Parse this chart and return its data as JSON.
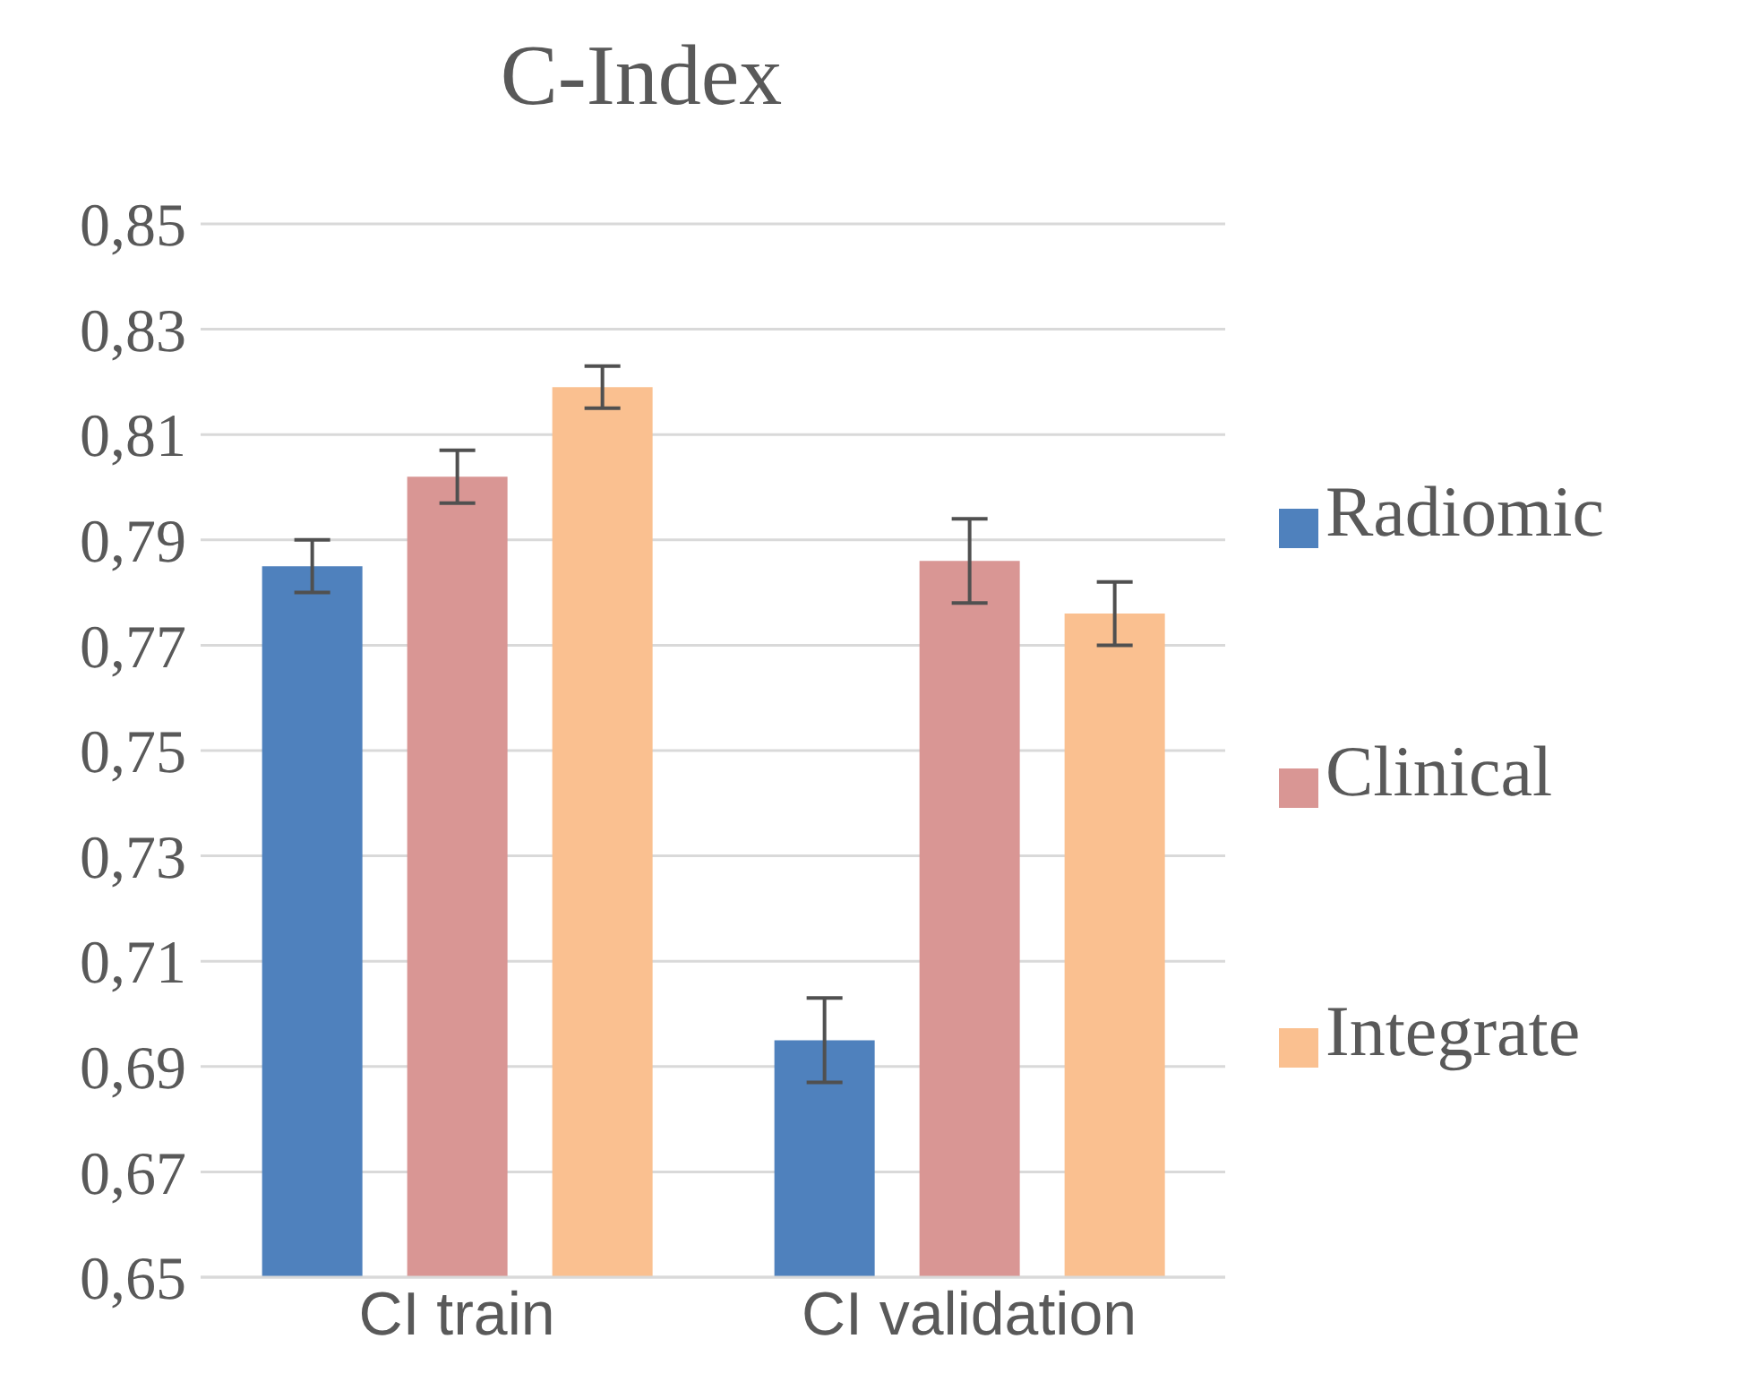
{
  "chart_data": {
    "type": "bar",
    "title": "C-Index",
    "categories": [
      "CI train",
      "CI validation"
    ],
    "series": [
      {
        "name": "Radiomic",
        "color": "#4f81bd",
        "values": [
          0.785,
          0.695
        ],
        "errors": [
          0.005,
          0.008
        ]
      },
      {
        "name": "Clinical",
        "color": "#d99694",
        "values": [
          0.802,
          0.786
        ],
        "errors": [
          0.005,
          0.008
        ]
      },
      {
        "name": "Integrate",
        "color": "#fac090",
        "values": [
          0.819,
          0.776
        ],
        "errors": [
          0.004,
          0.006
        ]
      }
    ],
    "ylim": [
      0.65,
      0.85
    ],
    "yticks": [
      {
        "value": 0.65,
        "label": "0,65"
      },
      {
        "value": 0.67,
        "label": "0,67"
      },
      {
        "value": 0.69,
        "label": "0,69"
      },
      {
        "value": 0.71,
        "label": "0,71"
      },
      {
        "value": 0.73,
        "label": "0,73"
      },
      {
        "value": 0.75,
        "label": "0,75"
      },
      {
        "value": 0.77,
        "label": "0,77"
      },
      {
        "value": 0.79,
        "label": "0,79"
      },
      {
        "value": 0.81,
        "label": "0,81"
      },
      {
        "value": 0.83,
        "label": "0,83"
      },
      {
        "value": 0.85,
        "label": "0,85"
      }
    ],
    "grid": "y",
    "legend": "right"
  }
}
